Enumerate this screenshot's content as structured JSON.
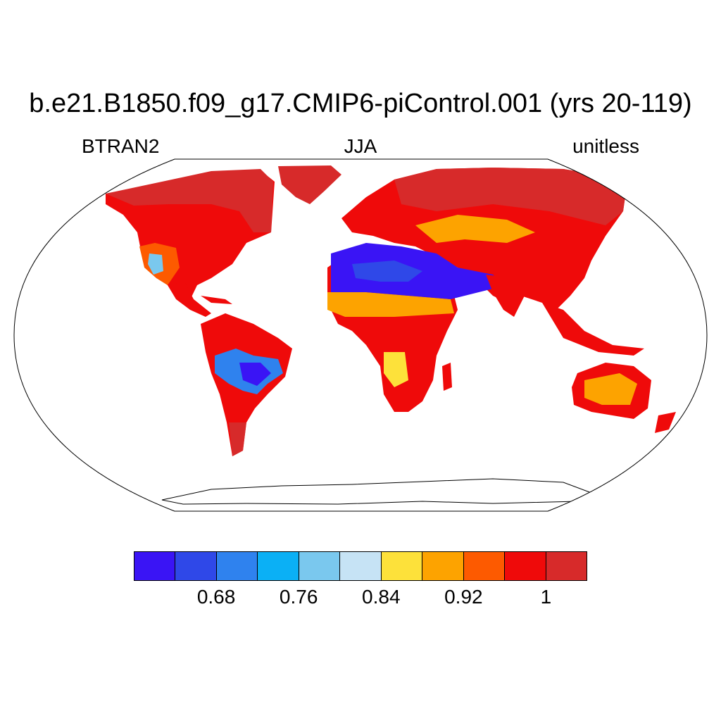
{
  "figure": {
    "title": "b.e21.B1850.f09_g17.CMIP6-piControl.001 (yrs 20-119)",
    "left_label": "BTRAN2",
    "center_label": "JJA",
    "right_label": "unitless"
  },
  "colorbar": {
    "colors": [
      "#3a14f5",
      "#2f48e8",
      "#2f82ee",
      "#0bb0f5",
      "#7ac8ee",
      "#c6e3f5",
      "#fde13a",
      "#fda300",
      "#fd5a00",
      "#ef0a0a",
      "#d72a2a"
    ],
    "labels": [
      "0.68",
      "0.76",
      "0.84",
      "0.92",
      "1"
    ]
  },
  "map": {
    "projection": "Robinson",
    "land_fill_color": "#ef0a0a",
    "high_latitude_color": "#d72a2a",
    "dry_region_color": "#3a14f5"
  }
}
